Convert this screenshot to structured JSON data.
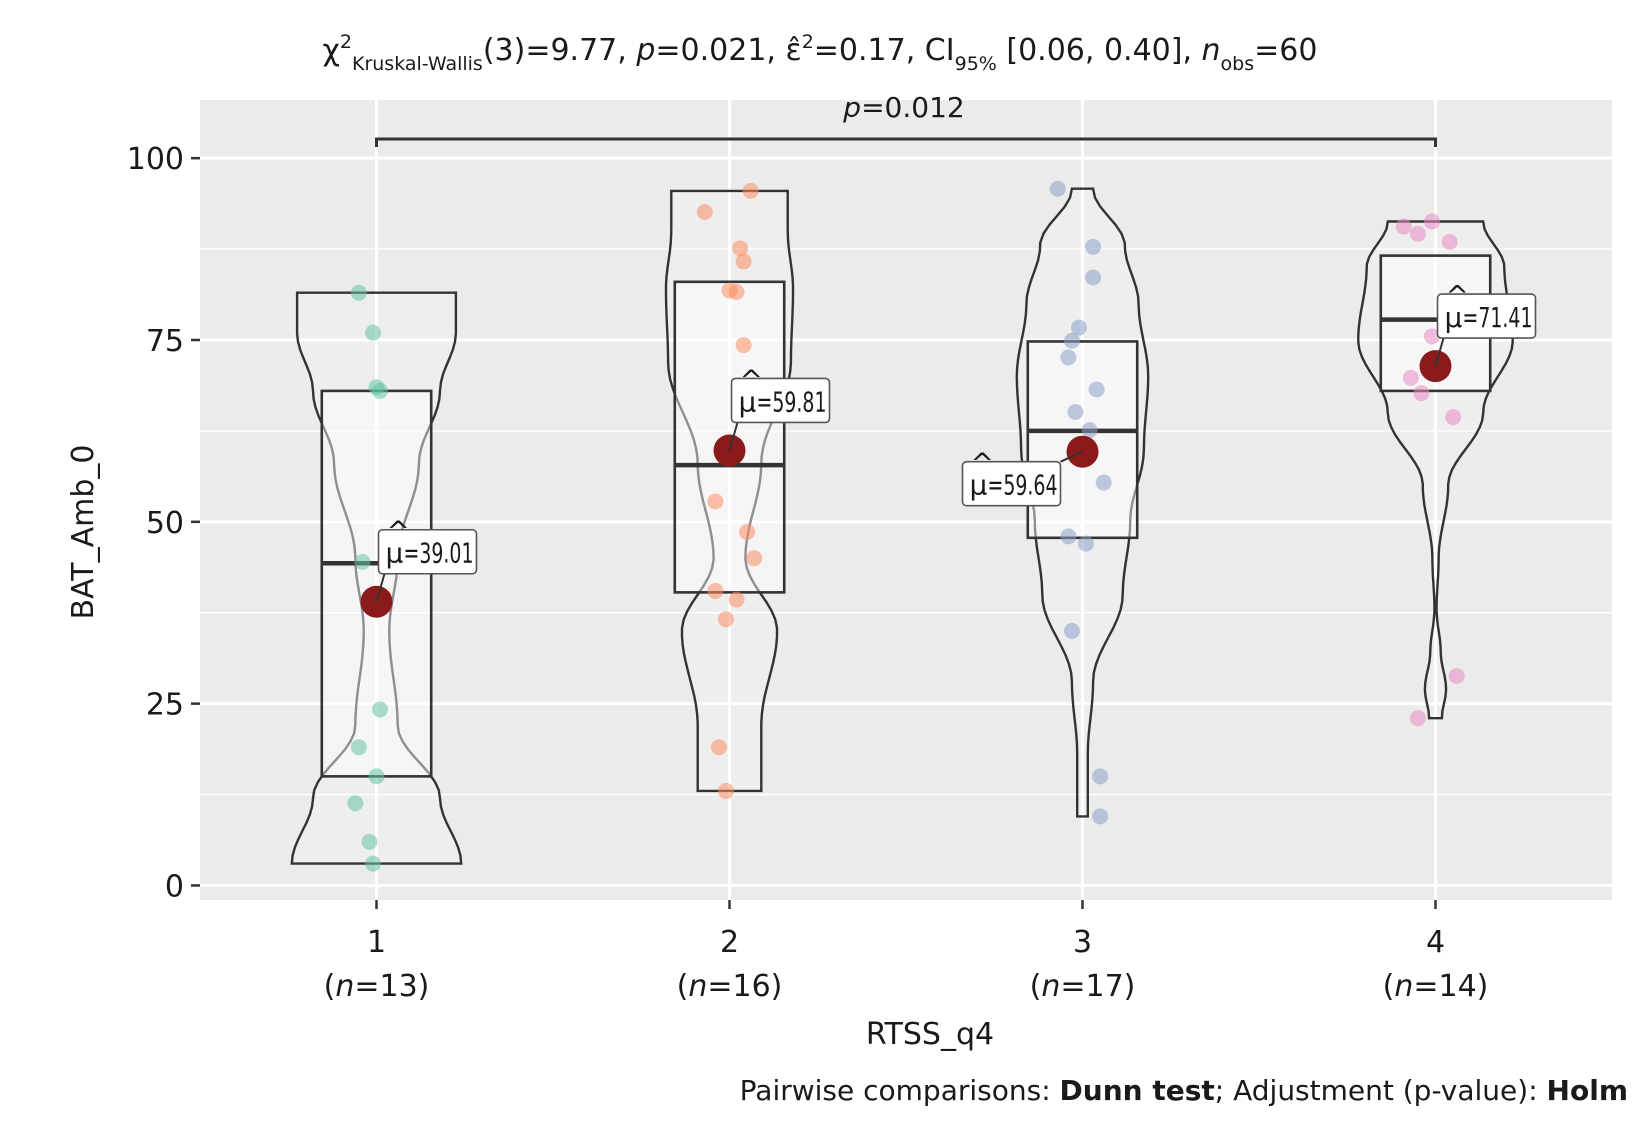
{
  "chart_data": {
    "type": "violin-box",
    "title": "χ²Kruskal-Wallis(3)=9.77, p=0.021, ε̂²=0.17, CI95% [0.06, 0.40], nobs=60",
    "title_parts": {
      "chi": "χ",
      "chi_sup": "2",
      "chi_sub": "Kruskal-Wallis",
      "chi_rest": "(3)=9.77, ",
      "p_italic": "p",
      "p_rest": "=0.021, ",
      "eps": "ε̂",
      "eps_sup": "2",
      "eps_rest": "=0.17, CI",
      "ci_sub": "95%",
      "ci_rest": " [0.06, 0.40], ",
      "n_italic": "n",
      "n_sub": "obs",
      "n_rest": "=60"
    },
    "pairwise_label": {
      "p_italic": "p",
      "value_text": "=0.012",
      "from": "1",
      "to": "4"
    },
    "xlabel": "RTSS_q4",
    "ylabel": "BAT_Amb_0",
    "ylim": [
      -2,
      108
    ],
    "yticks": [
      0,
      25,
      50,
      75,
      100
    ],
    "categories": [
      "1",
      "2",
      "3",
      "4"
    ],
    "group_n": [
      "(n=13)",
      "(n=16)",
      "(n=17)",
      "(n=14)"
    ],
    "group_n_parts": [
      {
        "open": "(",
        "n": "n",
        "rest": "=13)"
      },
      {
        "open": "(",
        "n": "n",
        "rest": "=16)"
      },
      {
        "open": "(",
        "n": "n",
        "rest": "=17)"
      },
      {
        "open": "(",
        "n": "n",
        "rest": "=14)"
      }
    ],
    "colors": [
      "#66c2a5",
      "#fc8d62",
      "#8da0cb",
      "#e78ac3"
    ],
    "mean_color": "#8b1a1a",
    "groups": [
      {
        "category": "1",
        "mean": 39.01,
        "mean_label": "μ̂=39.01",
        "mean_text": "=39.01",
        "box": {
          "q1": 15,
          "median": 44.3,
          "q3": 68
        },
        "violin": {
          "min": 3,
          "max": 81.5,
          "profile": [
            [
              3,
              0.8
            ],
            [
              12,
              0.6
            ],
            [
              22,
              0.2
            ],
            [
              35,
              0.12
            ],
            [
              45,
              0.2
            ],
            [
              58,
              0.4
            ],
            [
              68,
              0.6
            ],
            [
              76,
              0.75
            ],
            [
              81.5,
              0.75
            ]
          ]
        },
        "points": [
          [
            81.5,
            -0.05
          ],
          [
            76,
            -0.01
          ],
          [
            68.5,
            0.0
          ],
          [
            68,
            0.01
          ],
          [
            44.5,
            -0.04
          ],
          [
            24.2,
            0.01
          ],
          [
            19,
            -0.05
          ],
          [
            15,
            0.0
          ],
          [
            11.3,
            -0.06
          ],
          [
            6,
            -0.02
          ],
          [
            3,
            -0.01
          ]
        ]
      },
      {
        "category": "2",
        "mean": 59.81,
        "mean_label": "μ̂=59.81",
        "mean_text": "=59.81",
        "box": {
          "q1": 40.3,
          "median": 57.8,
          "q3": 83
        },
        "violin": {
          "min": 13,
          "max": 95.5,
          "profile": [
            [
              13,
              0.3
            ],
            [
              22,
              0.3
            ],
            [
              35,
              0.45
            ],
            [
              45,
              0.15
            ],
            [
              58,
              0.3
            ],
            [
              72,
              0.58
            ],
            [
              82,
              0.6
            ],
            [
              90,
              0.55
            ],
            [
              95.5,
              0.55
            ]
          ]
        },
        "points": [
          [
            95.5,
            0.06
          ],
          [
            92.6,
            -0.07
          ],
          [
            87.6,
            0.03
          ],
          [
            85.8,
            0.04
          ],
          [
            81.8,
            0.0
          ],
          [
            81.6,
            0.02
          ],
          [
            74.3,
            0.04
          ],
          [
            52.8,
            -0.04
          ],
          [
            48.6,
            0.05
          ],
          [
            45,
            0.07
          ],
          [
            40.5,
            -0.04
          ],
          [
            39.3,
            0.02
          ],
          [
            36.6,
            -0.01
          ],
          [
            19,
            -0.03
          ],
          [
            13,
            -0.01
          ]
        ]
      },
      {
        "category": "3",
        "mean": 59.64,
        "mean_label": "μ̂=59.64",
        "mean_text": "=59.64",
        "box": {
          "q1": 47.8,
          "median": 62.5,
          "q3": 74.8
        },
        "violin": {
          "min": 9.5,
          "max": 95.8,
          "profile": [
            [
              9.5,
              0.05
            ],
            [
              18,
              0.05
            ],
            [
              28,
              0.1
            ],
            [
              40,
              0.38
            ],
            [
              50,
              0.45
            ],
            [
              60,
              0.58
            ],
            [
              70,
              0.62
            ],
            [
              80,
              0.53
            ],
            [
              88,
              0.4
            ],
            [
              95.8,
              0.1
            ]
          ]
        },
        "points": [
          [
            95.8,
            -0.07
          ],
          [
            87.8,
            0.03
          ],
          [
            83.6,
            0.03
          ],
          [
            76.7,
            -0.01
          ],
          [
            74.9,
            -0.03
          ],
          [
            72.6,
            -0.04
          ],
          [
            68.2,
            0.04
          ],
          [
            65.1,
            -0.02
          ],
          [
            62.6,
            0.02
          ],
          [
            59.4,
            0.0
          ],
          [
            55.4,
            0.06
          ],
          [
            48,
            -0.04
          ],
          [
            47,
            0.01
          ],
          [
            35,
            -0.03
          ],
          [
            15,
            0.05
          ],
          [
            9.5,
            0.05
          ]
        ]
      },
      {
        "category": "4",
        "mean": 71.41,
        "mean_label": "μ̂=71.41",
        "mean_text": "=71.41",
        "box": {
          "q1": 68,
          "median": 77.8,
          "q3": 86.6
        },
        "violin": {
          "min": 23,
          "max": 91.3,
          "profile": [
            [
              23,
              0.06
            ],
            [
              27,
              0.1
            ],
            [
              32,
              0.05
            ],
            [
              38,
              0.01
            ],
            [
              45,
              0.03
            ],
            [
              55,
              0.12
            ],
            [
              65,
              0.45
            ],
            [
              75,
              0.73
            ],
            [
              85,
              0.65
            ],
            [
              91.3,
              0.45
            ]
          ]
        },
        "points": [
          [
            91.3,
            -0.01
          ],
          [
            90.6,
            -0.09
          ],
          [
            89.6,
            -0.05
          ],
          [
            88.5,
            0.04
          ],
          [
            80.3,
            0.06
          ],
          [
            79.8,
            0.03
          ],
          [
            75.5,
            -0.01
          ],
          [
            69.8,
            -0.07
          ],
          [
            67.7,
            -0.04
          ],
          [
            64.4,
            0.05
          ],
          [
            28.8,
            0.06
          ],
          [
            23,
            -0.05
          ]
        ]
      }
    ],
    "caption": "Pairwise comparisons: Dunn test; Adjustment (p-value): Holm",
    "caption_parts": {
      "a": "Pairwise comparisons: ",
      "b": "Dunn test",
      "c": "; Adjustment (p-value): ",
      "d": "Holm"
    },
    "grid": true,
    "legend": "none"
  }
}
